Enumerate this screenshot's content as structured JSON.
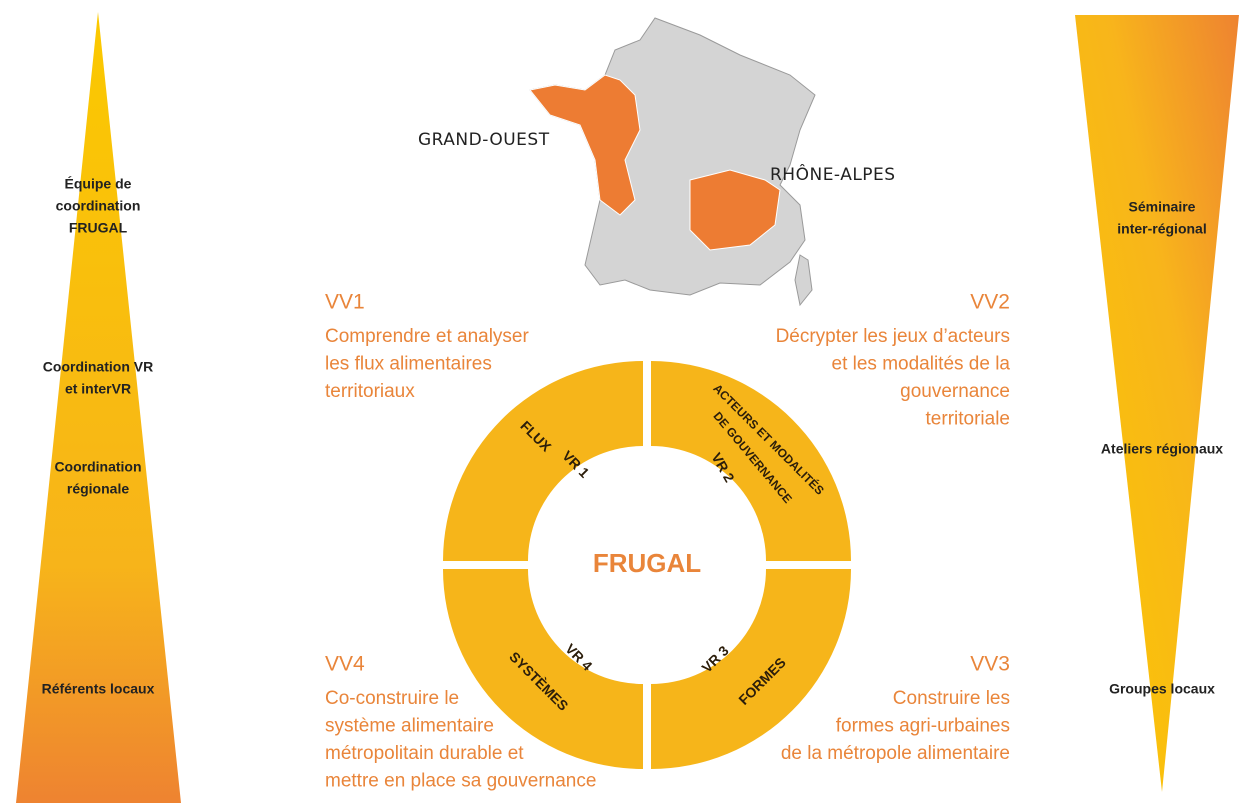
{
  "left_pyramid": {
    "labels": [
      {
        "lines": [
          "Équipe de",
          "coordination",
          "FRUGAL"
        ]
      },
      {
        "lines": [
          "Coordination VR",
          "et interVR"
        ]
      },
      {
        "lines": [
          "Coordination",
          "régionale"
        ]
      },
      {
        "lines": [
          "Référents locaux"
        ]
      }
    ]
  },
  "right_pyramid": {
    "labels": [
      {
        "lines": [
          "Séminaire",
          "inter-régional"
        ]
      },
      {
        "lines": [
          "Ateliers régionaux"
        ]
      },
      {
        "lines": [
          "Groupes locaux"
        ]
      }
    ]
  },
  "map": {
    "regions": [
      "GRAND-OUEST",
      "RHÔNE-ALPES"
    ]
  },
  "ring": {
    "center": "FRUGAL",
    "quadrants": [
      {
        "id": "VR 1",
        "theme": [
          "FLUX"
        ]
      },
      {
        "id": "VR 2",
        "theme": [
          "ACTEURS ET MODALITÉS",
          "DE GOUVERNANCE"
        ]
      },
      {
        "id": "VR 3",
        "theme": [
          "FORMES"
        ]
      },
      {
        "id": "VR 4",
        "theme": [
          "SYSTÈMES"
        ]
      }
    ]
  },
  "objectives": [
    {
      "title": "VV1",
      "lines": [
        "Comprendre et analyser",
        "les flux alimentaires",
        "territoriaux"
      ]
    },
    {
      "title": "VV2",
      "lines": [
        "Décrypter les jeux d’acteurs",
        "et les modalités de la",
        "gouvernance",
        "territoriale"
      ]
    },
    {
      "title": "VV3",
      "lines": [
        "Construire les",
        "formes agri-urbaines",
        "de la métropole alimentaire"
      ]
    },
    {
      "title": "VV4",
      "lines": [
        "Co-construire le",
        "système alimentaire",
        "métropolitain durable et",
        "mettre en place sa gouvernance"
      ]
    }
  ]
}
